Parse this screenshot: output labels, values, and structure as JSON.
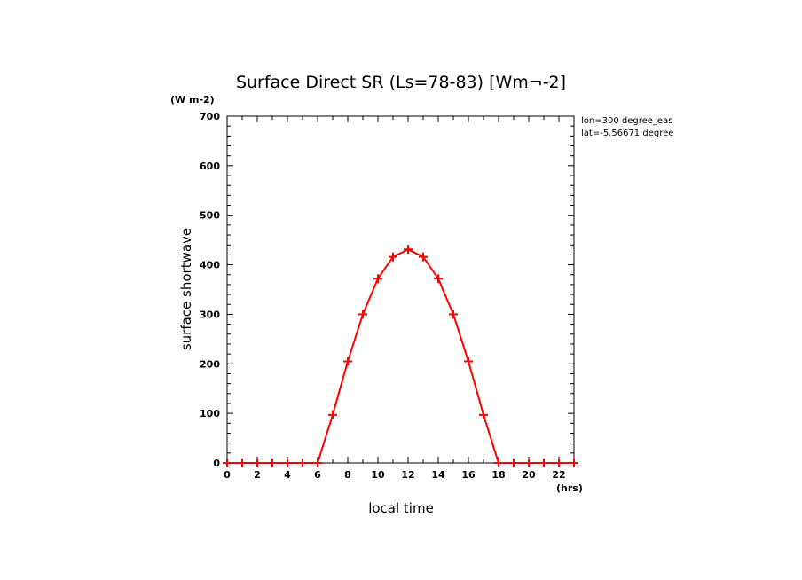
{
  "chart_data": {
    "type": "line",
    "title": "Surface Direct SR (Ls=78-83) [Wm¬-2]",
    "xlabel": "local time",
    "ylabel": "surface shortwave",
    "x_unit": "(hrs)",
    "y_unit": "(W m-2)",
    "xlim": [
      0,
      23
    ],
    "ylim": [
      0,
      700
    ],
    "x_ticks": [
      0,
      2,
      4,
      6,
      8,
      10,
      12,
      14,
      16,
      18,
      20,
      22
    ],
    "y_ticks": [
      0,
      100,
      200,
      300,
      400,
      500,
      600,
      700
    ],
    "grid": false,
    "annotations": [
      "lon=300 degree_eas",
      "lat=-5.56671 degree"
    ],
    "series": [
      {
        "color": "#ff0000",
        "marker": "plus",
        "x": [
          0,
          1,
          2,
          3,
          4,
          5,
          6,
          7,
          8,
          9,
          10,
          11,
          12,
          13,
          14,
          15,
          16,
          17,
          18,
          19,
          20,
          21,
          22,
          23
        ],
        "y": [
          0,
          0,
          0,
          0,
          0,
          0,
          0,
          97,
          205,
          300,
          372,
          416,
          431,
          416,
          372,
          300,
          205,
          97,
          0,
          0,
          0,
          0,
          0,
          0
        ]
      }
    ]
  }
}
